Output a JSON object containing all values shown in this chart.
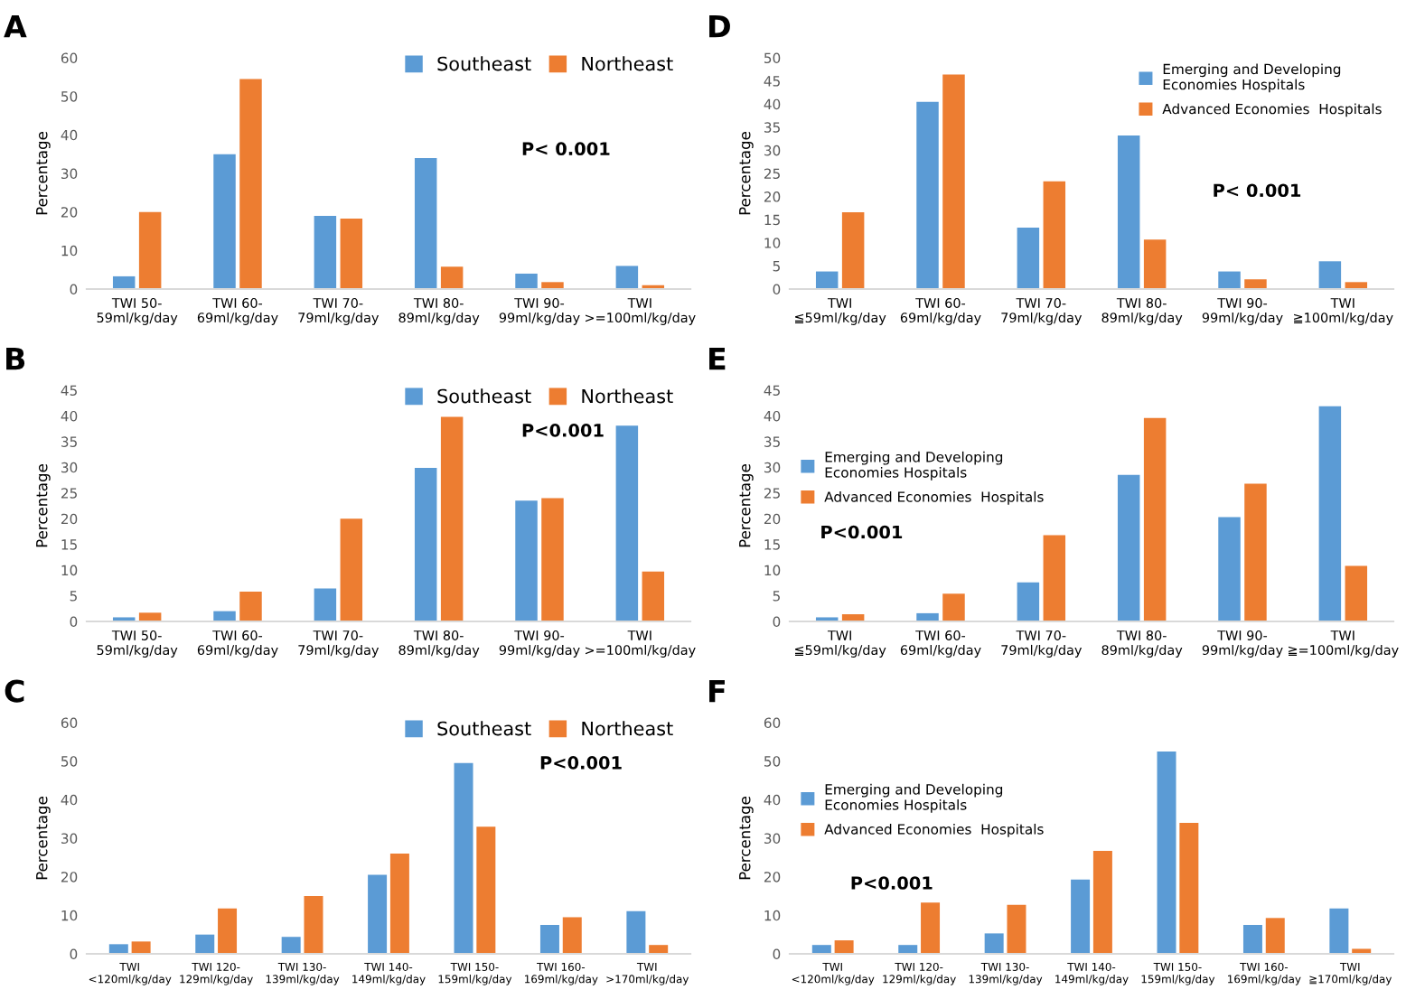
{
  "chart_data": [
    {
      "type": "bar",
      "title": "A",
      "ylabel": "Percentage",
      "categories": [
        "TWI 50-\n59ml/kg/day",
        "TWI 60-\n69ml/kg/day",
        "TWI 70-\n79ml/kg/day",
        "TWI 80-\n89ml/kg/day",
        "TWI 90-\n99ml/kg/day",
        "TWI\n>=100ml/kg/day"
      ],
      "series": [
        {
          "name": "Southeast",
          "color": "#5b9bd5",
          "values": [
            3.3,
            35,
            19,
            34,
            4,
            6
          ]
        },
        {
          "name": "Northeast",
          "color": "#ed7d31",
          "values": [
            20,
            54.5,
            18.3,
            5.8,
            1.8,
            1
          ]
        }
      ],
      "ylim": [
        0,
        60
      ],
      "yticks": [
        0,
        10,
        20,
        30,
        40,
        50,
        60
      ],
      "legend": "top right",
      "annotations": [
        "P< 0.001"
      ]
    },
    {
      "type": "bar",
      "title": "D",
      "ylabel": "Percentage",
      "categories": [
        "TWI\n≦59ml/kg/day",
        "TWI 60-\n69ml/kg/day",
        "TWI 70-\n79ml/kg/day",
        "TWI 80-\n89ml/kg/day",
        "TWI 90-\n99ml/kg/day",
        "TWI\n≧100ml/kg/day"
      ],
      "series": [
        {
          "name": "Emerging and Developing\nEconomies Hospitals",
          "color": "#5b9bd5",
          "values": [
            3.8,
            40.5,
            13.3,
            33.2,
            3.8,
            6
          ]
        },
        {
          "name": "Advanced Economies  Hospitals",
          "color": "#ed7d31",
          "values": [
            16.6,
            46.4,
            23.3,
            10.7,
            2.1,
            1.5
          ]
        }
      ],
      "ylim": [
        0,
        50
      ],
      "yticks": [
        0,
        5,
        10,
        15,
        20,
        25,
        30,
        35,
        40,
        45,
        50
      ],
      "legend": "right",
      "annotations": [
        "P< 0.001"
      ]
    },
    {
      "type": "bar",
      "title": "B",
      "ylabel": "Percentage",
      "categories": [
        "TWI 50-\n59ml/kg/day",
        "TWI 60-\n69ml/kg/day",
        "TWI 70-\n79ml/kg/day",
        "TWI 80-\n89ml/kg/day",
        "TWI 90-\n99ml/kg/day",
        "TWI\n>=100ml/kg/day"
      ],
      "series": [
        {
          "name": "Southeast",
          "color": "#5b9bd5",
          "values": [
            0.8,
            2,
            6.4,
            29.9,
            23.5,
            38.1
          ]
        },
        {
          "name": "Northeast",
          "color": "#ed7d31",
          "values": [
            1.7,
            5.8,
            20,
            39.8,
            24,
            9.7
          ]
        }
      ],
      "ylim": [
        0,
        45
      ],
      "yticks": [
        0,
        5,
        10,
        15,
        20,
        25,
        30,
        35,
        40,
        45
      ],
      "legend": "top right",
      "annotations": [
        "P<0.001"
      ]
    },
    {
      "type": "bar",
      "title": "E",
      "ylabel": "Percentage",
      "categories": [
        "TWI\n≦59ml/kg/day",
        "TWI 60-\n69ml/kg/day",
        "TWI 70-\n79ml/kg/day",
        "TWI 80-\n89ml/kg/day",
        "TWI 90-\n99ml/kg/day",
        "TWI\n≧=100ml/kg/day"
      ],
      "series": [
        {
          "name": "Emerging and Developing\nEconomies Hospitals",
          "color": "#5b9bd5",
          "values": [
            0.8,
            1.6,
            7.6,
            28.5,
            20.3,
            41.9
          ]
        },
        {
          "name": "Advanced Economies  Hospitals",
          "color": "#ed7d31",
          "values": [
            1.4,
            5.4,
            16.8,
            39.6,
            26.8,
            10.8
          ]
        }
      ],
      "ylim": [
        0,
        45
      ],
      "yticks": [
        0,
        5,
        10,
        15,
        20,
        25,
        30,
        35,
        40,
        45
      ],
      "legend": "left",
      "annotations": [
        "P<0.001"
      ]
    },
    {
      "type": "bar",
      "title": "C",
      "ylabel": "Percentage",
      "categories": [
        "TWI\n<120ml/kg/day",
        "TWI 120-\n129ml/kg/day",
        "TWI 130-\n139ml/kg/day",
        "TWI 140-\n149ml/kg/day",
        "TWI 150-\n159ml/kg/day",
        "TWI 160-\n169ml/kg/day",
        "TWI\n>170ml/kg/day"
      ],
      "series": [
        {
          "name": "Southeast",
          "color": "#5b9bd5",
          "values": [
            2.5,
            5,
            4.4,
            20.5,
            49.5,
            7.5,
            11.1
          ]
        },
        {
          "name": "Northeast",
          "color": "#ed7d31",
          "values": [
            3.2,
            11.8,
            15,
            26,
            33,
            9.5,
            2.3
          ]
        }
      ],
      "ylim": [
        0,
        60
      ],
      "yticks": [
        0,
        10,
        20,
        30,
        40,
        50,
        60
      ],
      "legend": "top right",
      "annotations": [
        "P<0.001"
      ]
    },
    {
      "type": "bar",
      "title": "F",
      "ylabel": "Percentage",
      "categories": [
        "TWI\n<120ml/kg/day",
        "TWI 120-\n129ml/kg/day",
        "TWI 130-\n139ml/kg/day",
        "TWI 140-\n149ml/kg/day",
        "TWI 150-\n159ml/kg/day",
        "TWI 160-\n169ml/kg/day",
        "TWI\n≧170ml/kg/day"
      ],
      "series": [
        {
          "name": "Emerging and Developing\nEconomies Hospitals",
          "color": "#5b9bd5",
          "values": [
            2.3,
            2.3,
            5.3,
            19.3,
            52.5,
            7.5,
            11.8
          ]
        },
        {
          "name": "Advanced Economies  Hospitals",
          "color": "#ed7d31",
          "values": [
            3.5,
            13.3,
            12.7,
            26.7,
            34,
            9.3,
            1.3
          ]
        }
      ],
      "ylim": [
        0,
        60
      ],
      "yticks": [
        0,
        10,
        20,
        30,
        40,
        50,
        60
      ],
      "legend": "left",
      "annotations": [
        "P<0.001"
      ]
    }
  ]
}
